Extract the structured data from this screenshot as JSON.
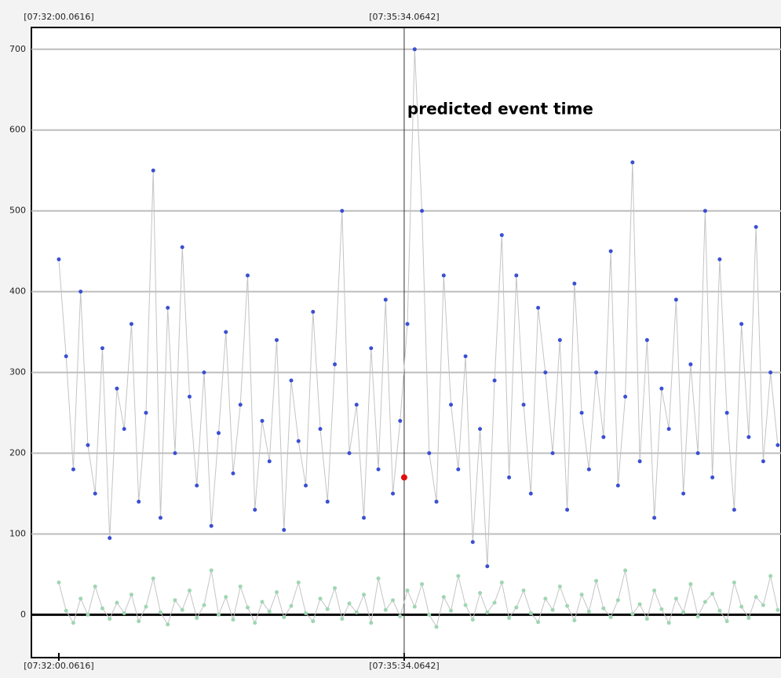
{
  "chart_data": {
    "type": "line",
    "annotation": "predicted event time",
    "xlim": [
      -17,
      447.5
    ],
    "xticks": [
      {
        "value": 0,
        "label": "[07:32:00.0616]"
      },
      {
        "value": 214.0026,
        "label": "[07:35:34.0642]"
      }
    ],
    "ylim": [
      -53,
      727
    ],
    "yticks": [
      0,
      100,
      200,
      300,
      400,
      500,
      600,
      700
    ],
    "grid": true,
    "line_color": "#c4c4c4",
    "x": [
      0,
      4.5,
      9,
      13.5,
      18,
      22.5,
      27,
      31.5,
      36,
      40.5,
      45,
      49.5,
      54,
      58.5,
      63,
      67.5,
      72,
      76.5,
      81,
      85.5,
      90,
      94.5,
      99,
      103.5,
      108,
      112.5,
      117,
      121.5,
      126,
      130.5,
      135,
      139.5,
      144,
      148.5,
      153,
      157.5,
      162,
      166.5,
      171,
      175.5,
      180,
      184.5,
      189,
      193.5,
      198,
      202.5,
      207,
      211.5,
      216,
      220.5,
      225,
      229.5,
      234,
      238.5,
      243,
      247.5,
      252,
      256.5,
      261,
      265.5,
      270,
      274.5,
      279,
      283.5,
      288,
      292.5,
      297,
      301.5,
      306,
      310.5,
      315,
      319.5,
      324,
      328.5,
      333,
      337.5,
      342,
      346.5,
      351,
      355.5,
      360,
      364.5,
      369,
      373.5,
      378,
      382.5,
      387,
      391.5,
      396,
      400.5,
      405,
      409.5,
      414,
      418.5,
      423,
      427.5,
      432,
      436.5,
      441,
      445.5
    ],
    "series": [
      {
        "name": "series-1",
        "color": "#3b4fd2",
        "values": [
          440,
          320,
          180,
          400,
          210,
          150,
          330,
          95,
          280,
          230,
          360,
          140,
          250,
          550,
          120,
          380,
          200,
          455,
          270,
          160,
          300,
          110,
          225,
          350,
          175,
          260,
          420,
          130,
          240,
          190,
          340,
          105,
          290,
          215,
          160,
          375,
          230,
          140,
          310,
          500,
          200,
          260,
          120,
          330,
          180,
          390,
          150,
          240,
          360,
          700,
          500,
          200,
          140,
          420,
          260,
          180,
          320,
          90,
          230,
          60,
          290,
          470,
          170,
          420,
          260,
          150,
          380,
          300,
          200,
          340,
          130,
          410,
          250,
          180,
          300,
          220,
          450,
          160,
          270,
          560,
          190,
          340,
          120,
          280,
          230,
          390,
          150,
          310,
          200,
          500,
          170,
          440,
          250,
          130,
          360,
          220,
          480,
          190,
          300,
          210
        ]
      },
      {
        "name": "series-2",
        "color": "#9fd6b2",
        "values": [
          40,
          5,
          -10,
          20,
          0,
          35,
          8,
          -5,
          15,
          2,
          25,
          -8,
          10,
          45,
          3,
          -12,
          18,
          6,
          30,
          -4,
          12,
          55,
          0,
          22,
          -6,
          35,
          9,
          -10,
          16,
          4,
          28,
          -3,
          11,
          40,
          2,
          -8,
          20,
          7,
          33,
          -5,
          14,
          3,
          25,
          -10,
          45,
          6,
          18,
          -2,
          30,
          10,
          38,
          0,
          -15,
          22,
          5,
          48,
          12,
          -6,
          27,
          3,
          15,
          40,
          -4,
          9,
          30,
          2,
          -9,
          20,
          6,
          35,
          11,
          -7,
          25,
          4,
          42,
          8,
          -3,
          18,
          55,
          1,
          13,
          -5,
          30,
          7,
          -10,
          20,
          3,
          38,
          -2,
          16,
          26,
          5,
          -8,
          40,
          10,
          -4,
          22,
          12,
          48,
          6
        ]
      }
    ],
    "event": {
      "x": 214.0026,
      "y": 170,
      "color": "#e01010"
    }
  }
}
